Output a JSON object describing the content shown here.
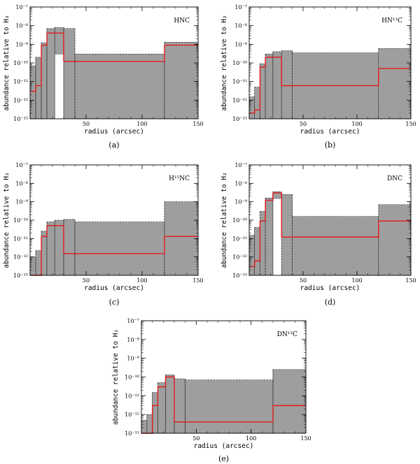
{
  "figure": {
    "x_ticks": [
      "50",
      "100",
      "150"
    ],
    "y_ticks": [
      "10⁻¹³",
      "10⁻¹²",
      "10⁻¹¹",
      "10⁻¹⁰",
      "10⁻⁹",
      "10⁻⁸",
      "10⁻⁷"
    ]
  },
  "chart_data": [
    {
      "type": "step",
      "title": "HNC",
      "caption": "(a)",
      "xlabel": "radius (arcsec)",
      "ylabel": "abundance relative to H₂",
      "xlim": [
        0,
        150
      ],
      "ylim": [
        1e-13,
        1e-07
      ],
      "yscale": "log",
      "edges": [
        0,
        5,
        10,
        15,
        22,
        30,
        40,
        120,
        150
      ],
      "best_fit": [
        3e-12,
        6e-12,
        9e-10,
        4e-09,
        4e-09,
        1.2e-10,
        1.2e-10,
        9e-10
      ],
      "range_low": [
        1e-13,
        1e-13,
        1e-13,
        1e-13,
        3e-10,
        1e-13,
        1e-13,
        1e-13
      ],
      "range_high": [
        7e-11,
        2e-10,
        1.2e-09,
        7e-09,
        8e-09,
        7e-09,
        3e-10,
        1.3e-09
      ]
    },
    {
      "type": "step",
      "title": "HN¹³C",
      "caption": "(b)",
      "xlabel": "radius (arcsec)",
      "ylabel": "abundance relative to H₂",
      "xlim": [
        0,
        150
      ],
      "ylim": [
        1e-13,
        1e-07
      ],
      "yscale": "log",
      "edges": [
        0,
        5,
        10,
        15,
        22,
        30,
        40,
        120,
        150
      ],
      "best_fit": [
        2e-13,
        3e-13,
        6e-11,
        2e-10,
        2e-10,
        6e-12,
        6e-12,
        5e-11
      ],
      "range_low": [
        1e-13,
        1e-13,
        1e-13,
        1e-13,
        1e-13,
        1e-13,
        1e-13,
        1e-13
      ],
      "range_high": [
        1.5e-12,
        5e-12,
        9e-11,
        3e-10,
        4e-10,
        4.5e-10,
        3.5e-10,
        6e-10
      ]
    },
    {
      "type": "step",
      "title": "H¹⁵NC",
      "caption": "(c)",
      "xlabel": "radius (arcsec)",
      "ylabel": "abundance relative to H₂",
      "xlim": [
        0,
        150
      ],
      "ylim": [
        1e-13,
        1e-07
      ],
      "yscale": "log",
      "edges": [
        0,
        5,
        10,
        15,
        22,
        30,
        40,
        120,
        150
      ],
      "best_fit": [
        1e-13,
        1e-13,
        1.3e-11,
        5e-11,
        5e-11,
        1.5e-12,
        1.5e-12,
        1.3e-11
      ],
      "range_low": [
        1e-13,
        1e-13,
        1e-13,
        1e-13,
        1e-13,
        1e-13,
        1e-13,
        1e-13
      ],
      "range_high": [
        1e-12,
        2.2e-12,
        2.5e-11,
        8e-11,
        1e-10,
        1.1e-10,
        8e-11,
        1e-09
      ]
    },
    {
      "type": "step",
      "title": "DNC",
      "caption": "(d)",
      "xlabel": "radius (arcsec)",
      "ylabel": "abundance relative to H₂",
      "xlim": [
        0,
        150
      ],
      "ylim": [
        1e-13,
        1e-07
      ],
      "yscale": "log",
      "edges": [
        0,
        5,
        10,
        15,
        22,
        30,
        40,
        120,
        150
      ],
      "best_fit": [
        3e-13,
        6e-13,
        9e-11,
        1.2e-09,
        3e-09,
        1.2e-11,
        1.2e-11,
        9e-11
      ],
      "range_low": [
        1e-13,
        1e-13,
        1e-13,
        1e-13,
        1.5e-09,
        1e-13,
        1e-13,
        1e-13
      ],
      "range_high": [
        1.5e-11,
        4e-11,
        3e-10,
        1.6e-09,
        3.5e-09,
        2.5e-09,
        1.6e-10,
        7e-10
      ]
    },
    {
      "type": "step",
      "title": "DN¹³C",
      "caption": "(e)",
      "xlabel": "radius (arcsec)",
      "ylabel": "abundance relative to H₂",
      "xlim": [
        0,
        150
      ],
      "ylim": [
        1e-13,
        1e-07
      ],
      "yscale": "log",
      "edges": [
        0,
        5,
        10,
        15,
        22,
        30,
        40,
        120,
        150
      ],
      "best_fit": [
        1e-13,
        1e-13,
        3e-12,
        3e-11,
        1e-10,
        4e-13,
        4e-13,
        3e-12
      ],
      "range_low": [
        1e-13,
        1e-13,
        1e-13,
        1e-13,
        1e-13,
        1e-13,
        1e-13,
        1e-13
      ],
      "range_high": [
        5e-13,
        1e-12,
        1.5e-11,
        5e-11,
        1.3e-10,
        8e-11,
        7e-11,
        2.5e-10
      ]
    }
  ]
}
